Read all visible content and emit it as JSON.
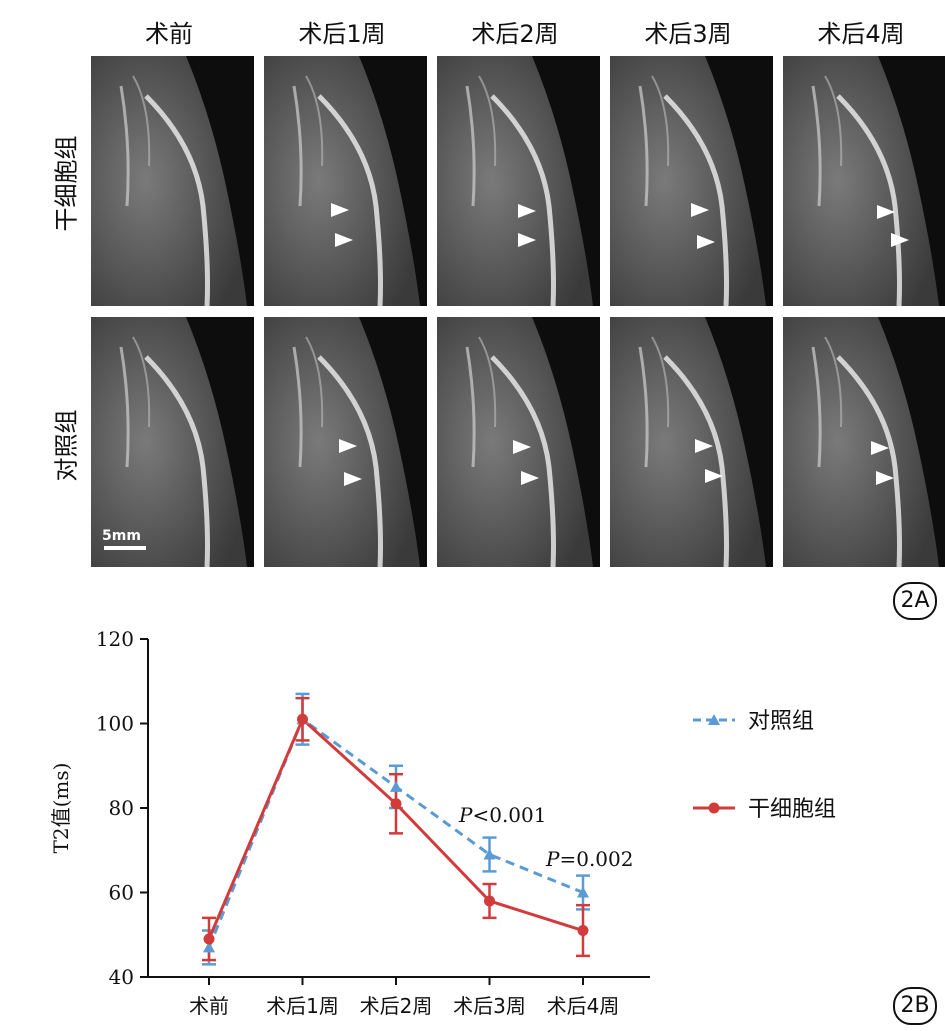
{
  "figure_a": {
    "columns": [
      "术前",
      "术后1周",
      "术后2周",
      "术后3周",
      "术后4周"
    ],
    "rows": [
      "干细胞组",
      "对照组"
    ],
    "scale_bar": "5mm",
    "panel_tag": "2A"
  },
  "figure_b_tag": "2B",
  "chart_data": {
    "type": "line",
    "categories": [
      "术前",
      "术后1周",
      "术后2周",
      "术后3周",
      "术后4周"
    ],
    "ylabel": "T2值(ms)",
    "xlabel": "",
    "ylim": [
      40,
      120
    ],
    "yticks": [
      40,
      60,
      80,
      100,
      120
    ],
    "legend_position": "right",
    "series": [
      {
        "name": "对照组",
        "values": [
          47,
          101,
          85,
          69,
          60
        ],
        "err": [
          4,
          6,
          5,
          4,
          4
        ],
        "color": "#5b9bd5",
        "style": "dashed",
        "marker": "triangle"
      },
      {
        "name": "干细胞组",
        "values": [
          49,
          101,
          81,
          58,
          51
        ],
        "err": [
          5,
          5,
          7,
          4,
          6
        ],
        "color": "#d33b3b",
        "style": "solid",
        "marker": "circle"
      }
    ],
    "annotations": [
      {
        "category": "术后3周",
        "p_label": "P",
        "text": "<0.001"
      },
      {
        "category": "术后4周",
        "p_label": "P",
        "text": "=0.002"
      }
    ]
  }
}
